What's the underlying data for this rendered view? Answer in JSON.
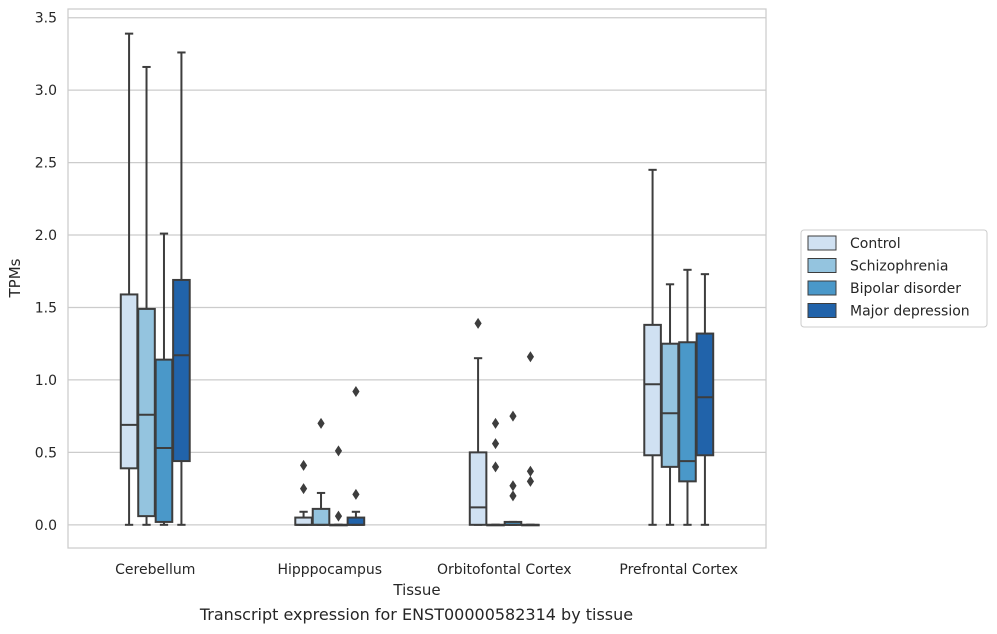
{
  "caption": "Transcript expression for ENST00000582314 by tissue",
  "chart_data": {
    "type": "box",
    "xlabel": "Tissue",
    "ylabel": "TPMs",
    "ylim": [
      -0.16,
      3.56
    ],
    "yticks": [
      0.0,
      0.5,
      1.0,
      1.5,
      2.0,
      2.5,
      3.0,
      3.5
    ],
    "ytick_labels": [
      "0.0",
      "0.5",
      "1.0",
      "1.5",
      "2.0",
      "2.5",
      "3.0",
      "3.5"
    ],
    "categories": [
      "Cerebellum",
      "Hipppocampus",
      "Orbitofontal Cortex",
      "Prefrontal Cortex"
    ],
    "grid": "horizontal",
    "legend_position": "right",
    "series": [
      {
        "name": "Control",
        "color": "#d0e1f2",
        "boxes": [
          {
            "whislo": 0.0,
            "q1": 0.39,
            "med": 0.69,
            "q3": 1.59,
            "whishi": 3.39,
            "fliers": []
          },
          {
            "whislo": 0.0,
            "q1": 0.0,
            "med": 0.0,
            "q3": 0.05,
            "whishi": 0.09,
            "fliers": [
              0.25,
              0.41
            ]
          },
          {
            "whislo": 0.0,
            "q1": 0.0,
            "med": 0.12,
            "q3": 0.5,
            "whishi": 1.15,
            "fliers": [
              1.39
            ]
          },
          {
            "whislo": 0.0,
            "q1": 0.48,
            "med": 0.97,
            "q3": 1.38,
            "whishi": 2.45,
            "fliers": []
          }
        ]
      },
      {
        "name": "Schizophrenia",
        "color": "#94c4df",
        "boxes": [
          {
            "whislo": 0.0,
            "q1": 0.06,
            "med": 0.76,
            "q3": 1.49,
            "whishi": 3.16,
            "fliers": []
          },
          {
            "whislo": 0.0,
            "q1": 0.0,
            "med": 0.0,
            "q3": 0.11,
            "whishi": 0.22,
            "fliers": [
              0.7
            ]
          },
          {
            "whislo": 0.0,
            "q1": 0.0,
            "med": 0.0,
            "q3": 0.0,
            "whishi": 0.0,
            "fliers": [
              0.4,
              0.56,
              0.7
            ]
          },
          {
            "whislo": 0.0,
            "q1": 0.4,
            "med": 0.77,
            "q3": 1.25,
            "whishi": 1.66,
            "fliers": []
          }
        ]
      },
      {
        "name": "Bipolar disorder",
        "color": "#4a98c9",
        "boxes": [
          {
            "whislo": 0.0,
            "q1": 0.02,
            "med": 0.53,
            "q3": 1.14,
            "whishi": 2.01,
            "fliers": []
          },
          {
            "whislo": 0.0,
            "q1": 0.0,
            "med": 0.0,
            "q3": 0.0,
            "whishi": 0.0,
            "fliers": [
              0.06,
              0.51
            ]
          },
          {
            "whislo": 0.0,
            "q1": 0.0,
            "med": 0.0,
            "q3": 0.02,
            "whishi": 0.02,
            "fliers": [
              0.2,
              0.27,
              0.75
            ]
          },
          {
            "whislo": 0.0,
            "q1": 0.3,
            "med": 0.44,
            "q3": 1.26,
            "whishi": 1.76,
            "fliers": []
          }
        ]
      },
      {
        "name": "Major depression",
        "color": "#2163aa",
        "boxes": [
          {
            "whislo": 0.0,
            "q1": 0.44,
            "med": 1.17,
            "q3": 1.69,
            "whishi": 3.26,
            "fliers": []
          },
          {
            "whislo": 0.0,
            "q1": 0.0,
            "med": 0.0,
            "q3": 0.05,
            "whishi": 0.09,
            "fliers": [
              0.21,
              0.92
            ]
          },
          {
            "whislo": 0.0,
            "q1": 0.0,
            "med": 0.0,
            "q3": 0.0,
            "whishi": 0.0,
            "fliers": [
              0.3,
              0.37,
              1.16
            ]
          },
          {
            "whislo": 0.0,
            "q1": 0.48,
            "med": 0.88,
            "q3": 1.32,
            "whishi": 1.73,
            "fliers": []
          }
        ]
      }
    ]
  }
}
